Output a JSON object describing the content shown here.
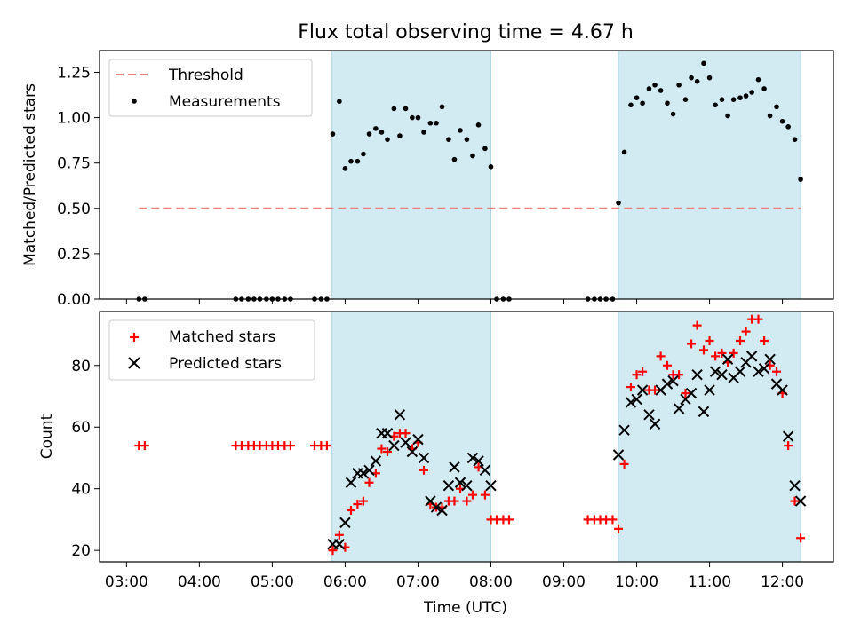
{
  "chart_data": {
    "title": "Flux total observing time = 4.67 h",
    "x_axis": {
      "label": "Time (UTC)",
      "ticks": [
        "03:00",
        "04:00",
        "05:00",
        "06:00",
        "07:00",
        "08:00",
        "09:00",
        "10:00",
        "11:00",
        "12:00"
      ],
      "range_hours": [
        2.63,
        12.7
      ]
    },
    "shaded_intervals_hours": [
      [
        5.82,
        8.0
      ],
      [
        9.75,
        12.25
      ]
    ],
    "shade_color": "#add8e6",
    "top": {
      "type": "scatter",
      "ylabel": "Matched/Predicted stars",
      "ylim": [
        0,
        1.37
      ],
      "yticks": [
        "0.00",
        "0.25",
        "0.50",
        "0.75",
        "1.00",
        "1.25"
      ],
      "legend": {
        "position": "top-left",
        "entries": [
          "Threshold",
          "Measurements"
        ]
      },
      "threshold": {
        "name": "Threshold",
        "y": 0.5,
        "x_range_hours": [
          3.17,
          12.25
        ],
        "color": "#f08080"
      },
      "measurements": {
        "name": "Measurements",
        "color": "#000000",
        "x": [
          3.17,
          3.25,
          4.5,
          4.58,
          4.67,
          4.75,
          4.83,
          4.92,
          5.0,
          5.08,
          5.17,
          5.25,
          5.58,
          5.67,
          5.75,
          5.83,
          5.92,
          6.0,
          6.08,
          6.17,
          6.25,
          6.33,
          6.42,
          6.5,
          6.58,
          6.67,
          6.75,
          6.83,
          6.92,
          7.0,
          7.08,
          7.17,
          7.25,
          7.33,
          7.42,
          7.5,
          7.58,
          7.67,
          7.75,
          7.83,
          7.92,
          8.0,
          8.08,
          8.17,
          8.25,
          9.33,
          9.42,
          9.5,
          9.58,
          9.67,
          9.75,
          9.83,
          9.92,
          10.0,
          10.08,
          10.17,
          10.25,
          10.33,
          10.42,
          10.5,
          10.58,
          10.67,
          10.75,
          10.83,
          10.92,
          11.0,
          11.08,
          11.17,
          11.25,
          11.33,
          11.42,
          11.5,
          11.58,
          11.67,
          11.75,
          11.83,
          11.92,
          12.0,
          12.08,
          12.17,
          12.25
        ],
        "y": [
          0,
          0,
          0,
          0,
          0,
          0,
          0,
          0,
          0,
          0,
          0,
          0,
          0,
          0,
          0,
          0.91,
          1.09,
          0.72,
          0.76,
          0.76,
          0.8,
          0.91,
          0.94,
          0.92,
          0.88,
          1.05,
          0.9,
          1.05,
          1.0,
          1.0,
          0.92,
          0.97,
          0.97,
          1.06,
          0.88,
          0.77,
          0.93,
          0.88,
          0.79,
          0.96,
          0.83,
          0.73,
          0,
          0,
          0,
          0,
          0,
          0,
          0,
          0,
          0.53,
          0.81,
          1.07,
          1.11,
          1.08,
          1.16,
          1.18,
          1.15,
          1.08,
          1.02,
          1.18,
          1.1,
          1.22,
          1.2,
          1.3,
          1.22,
          1.07,
          1.1,
          1.01,
          1.1,
          1.11,
          1.12,
          1.14,
          1.21,
          1.16,
          1.01,
          1.06,
          0.98,
          0.95,
          0.88,
          0.66
        ]
      }
    },
    "bottom": {
      "type": "scatter",
      "ylabel": "Count",
      "ylim": [
        16.3,
        97.5
      ],
      "yticks": [
        "20",
        "40",
        "60",
        "80"
      ],
      "legend": {
        "position": "top-left",
        "entries": [
          "Matched stars",
          "Predicted stars"
        ]
      },
      "matched": {
        "name": "Matched stars",
        "color": "#ff0000",
        "x": [
          3.17,
          3.25,
          4.5,
          4.58,
          4.67,
          4.75,
          4.83,
          4.92,
          5.0,
          5.08,
          5.17,
          5.25,
          5.58,
          5.67,
          5.75,
          5.83,
          5.92,
          6.0,
          6.08,
          6.17,
          6.25,
          6.33,
          6.42,
          6.5,
          6.58,
          6.67,
          6.75,
          6.83,
          6.92,
          7.0,
          7.08,
          7.17,
          7.25,
          7.33,
          7.42,
          7.5,
          7.58,
          7.67,
          7.75,
          7.83,
          7.92,
          8.0,
          8.08,
          8.17,
          8.25,
          9.33,
          9.42,
          9.5,
          9.58,
          9.67,
          9.75,
          9.83,
          9.92,
          10.0,
          10.08,
          10.17,
          10.25,
          10.33,
          10.42,
          10.5,
          10.58,
          10.67,
          10.75,
          10.83,
          10.92,
          11.0,
          11.08,
          11.17,
          11.25,
          11.33,
          11.42,
          11.5,
          11.58,
          11.67,
          11.75,
          11.83,
          11.92,
          12.0,
          12.08,
          12.17,
          12.25
        ],
        "y": [
          54,
          54,
          54,
          54,
          54,
          54,
          54,
          54,
          54,
          54,
          54,
          54,
          54,
          54,
          54,
          20,
          25,
          21,
          33,
          35,
          36,
          42,
          45,
          53,
          52,
          57,
          58,
          58,
          53,
          55,
          46,
          35,
          34,
          34,
          36,
          36,
          40,
          36,
          38,
          47,
          38,
          30,
          30,
          30,
          30,
          30,
          30,
          30,
          30,
          30,
          27,
          48,
          73,
          77,
          78,
          72,
          72,
          83,
          80,
          77,
          77,
          71,
          87,
          93,
          85,
          88,
          83,
          84,
          81,
          84,
          88,
          91,
          95,
          95,
          88,
          80,
          78,
          71,
          54,
          36,
          24
        ]
      },
      "predicted": {
        "name": "Predicted stars",
        "color": "#000000",
        "x": [
          5.83,
          5.92,
          6.0,
          6.08,
          6.17,
          6.25,
          6.33,
          6.42,
          6.5,
          6.58,
          6.67,
          6.75,
          6.83,
          6.92,
          7.0,
          7.08,
          7.17,
          7.25,
          7.33,
          7.42,
          7.5,
          7.58,
          7.67,
          7.75,
          7.83,
          7.92,
          8.0,
          9.75,
          9.83,
          9.92,
          10.0,
          10.08,
          10.17,
          10.25,
          10.33,
          10.42,
          10.5,
          10.58,
          10.67,
          10.75,
          10.83,
          10.92,
          11.0,
          11.08,
          11.17,
          11.25,
          11.33,
          11.42,
          11.5,
          11.58,
          11.67,
          11.75,
          11.83,
          11.92,
          12.0,
          12.08,
          12.17,
          12.25
        ],
        "y": [
          22,
          22,
          29,
          42,
          45,
          45,
          46,
          49,
          58,
          58,
          54,
          64,
          55,
          52,
          56,
          50,
          36,
          34,
          33,
          41,
          47,
          42,
          41,
          50,
          49,
          46,
          41,
          51,
          59,
          68,
          69,
          72,
          64,
          61,
          72,
          74,
          75,
          66,
          69,
          71,
          77,
          65,
          72,
          78,
          77,
          82,
          76,
          78,
          81,
          83,
          78,
          79,
          82,
          74,
          72,
          57,
          41,
          36
        ]
      }
    }
  }
}
